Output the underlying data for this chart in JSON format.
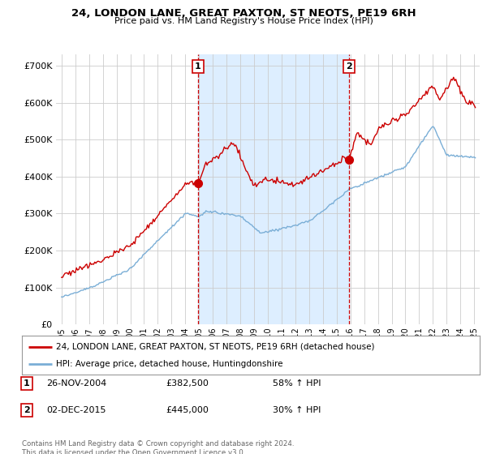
{
  "title": "24, LONDON LANE, GREAT PAXTON, ST NEOTS, PE19 6RH",
  "subtitle": "Price paid vs. HM Land Registry's House Price Index (HPI)",
  "legend_line1": "24, LONDON LANE, GREAT PAXTON, ST NEOTS, PE19 6RH (detached house)",
  "legend_line2": "HPI: Average price, detached house, Huntingdonshire",
  "transaction1_date": "26-NOV-2004",
  "transaction1_price": "£382,500",
  "transaction1_hpi": "58% ↑ HPI",
  "transaction1_year": 2004.92,
  "transaction1_value": 382500,
  "transaction2_date": "02-DEC-2015",
  "transaction2_price": "£445,000",
  "transaction2_hpi": "30% ↑ HPI",
  "transaction2_year": 2015.92,
  "transaction2_value": 445000,
  "footer": "Contains HM Land Registry data © Crown copyright and database right 2024.\nThis data is licensed under the Open Government Licence v3.0.",
  "red_color": "#cc0000",
  "blue_color": "#7aaed6",
  "shade_color": "#ddeeff",
  "marker_box_color": "#cc0000",
  "background_color": "#ffffff",
  "grid_color": "#cccccc",
  "yticks": [
    0,
    100000,
    200000,
    300000,
    400000,
    500000,
    600000,
    700000
  ],
  "ylim": [
    0,
    730000
  ],
  "xlim_start": 1994.6,
  "xlim_end": 2025.4
}
